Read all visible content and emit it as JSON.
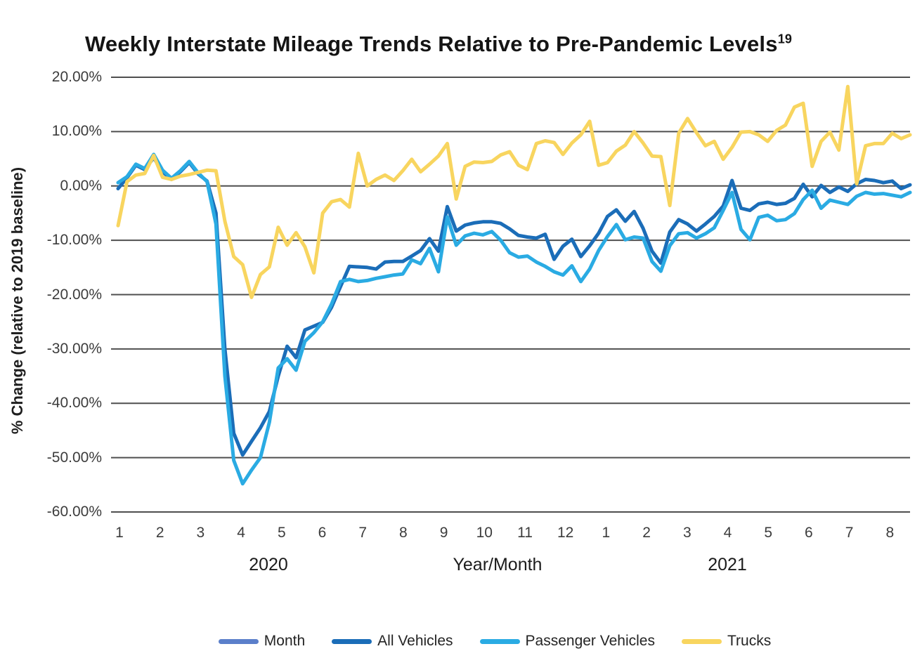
{
  "title": {
    "text": "Weekly Interstate Mileage Trends Relative to Pre-Pandemic Levels",
    "superscript": "19"
  },
  "y_axis": {
    "label": "% Change (relative to 2019 baseline)",
    "ticks": [
      {
        "label": "20.00%",
        "value": 20
      },
      {
        "label": "10.00%",
        "value": 10
      },
      {
        "label": "0.00%",
        "value": 0
      },
      {
        "label": "-10.00%",
        "value": -10
      },
      {
        "label": "-20.00%",
        "value": -20
      },
      {
        "label": "-30.00%",
        "value": -30
      },
      {
        "label": "-40.00%",
        "value": -40
      },
      {
        "label": "-50.00%",
        "value": -50
      },
      {
        "label": "-60.00%",
        "value": -60
      }
    ]
  },
  "x_axis": {
    "label": "Year/Month",
    "month_ticks": [
      "1",
      "2",
      "3",
      "4",
      "5",
      "6",
      "7",
      "8",
      "9",
      "10",
      "11",
      "12",
      "1",
      "2",
      "3",
      "4",
      "5",
      "6",
      "7",
      "8"
    ],
    "year_groups": [
      {
        "label": "2020",
        "months": 12
      },
      {
        "label": "2021",
        "months": 8
      }
    ]
  },
  "chart_data": {
    "type": "line",
    "title": "Weekly Interstate Mileage Trends Relative to Pre-Pandemic Levels",
    "xlabel": "Year/Month",
    "ylabel": "% Change (relative to 2019 baseline)",
    "ylim": [
      -60,
      20
    ],
    "y_tick_step": 10,
    "grid": "horizontal",
    "grid_color": "#4f4f4f",
    "legend_position": "bottom",
    "x_description": "Weekly observations, evenly spaced, January 2020 through late August 2021; month ticks 1-12 (2020) and 1-8 (2021)",
    "series": [
      {
        "name": "Month",
        "color": "#5b7fca",
        "values": null,
        "note": "legend entry only; no visible plotted line"
      },
      {
        "name": "All Vehicles",
        "color": "#1b6db8",
        "values": [
          -0.5,
          1.5,
          3.8,
          3.0,
          5.2,
          2.6,
          1.2,
          2.6,
          4.3,
          2.2,
          0.9,
          -5.0,
          -30.0,
          -45.5,
          -49.5,
          -47.0,
          -44.5,
          -41.5,
          -35.0,
          -29.5,
          -31.6,
          -26.5,
          -25.8,
          -25.1,
          -22.3,
          -18.5,
          -14.8,
          -14.9,
          -15.0,
          -15.3,
          -14.0,
          -13.9,
          -13.9,
          -12.9,
          -11.9,
          -9.7,
          -12.0,
          -3.8,
          -8.3,
          -7.2,
          -6.8,
          -6.6,
          -6.6,
          -6.9,
          -7.9,
          -9.1,
          -9.4,
          -9.6,
          -8.9,
          -13.5,
          -11.1,
          -9.8,
          -13.0,
          -11.0,
          -8.7,
          -5.6,
          -4.4,
          -6.5,
          -4.7,
          -7.8,
          -12.0,
          -14.2,
          -8.5,
          -6.2,
          -7.0,
          -8.3,
          -7.0,
          -5.6,
          -3.7,
          1.0,
          -4.1,
          -4.5,
          -3.3,
          -3.0,
          -3.4,
          -3.2,
          -2.3,
          0.3,
          -2.0,
          0.1,
          -1.2,
          -0.2,
          -1.0,
          0.4,
          1.2,
          1.0,
          0.6,
          0.9,
          -0.5,
          0.2
        ]
      },
      {
        "name": "Passenger Vehicles",
        "color": "#2aabe3",
        "values": [
          0.6,
          1.7,
          4.0,
          3.2,
          5.8,
          2.9,
          1.4,
          2.8,
          4.5,
          2.4,
          0.8,
          -7.0,
          -35.0,
          -50.5,
          -54.8,
          -52.3,
          -50.0,
          -43.5,
          -33.5,
          -31.8,
          -33.9,
          -28.6,
          -27.0,
          -25.0,
          -21.7,
          -17.6,
          -17.2,
          -17.6,
          -17.4,
          -17.0,
          -16.7,
          -16.4,
          -16.2,
          -13.6,
          -14.3,
          -11.5,
          -15.8,
          -5.7,
          -10.9,
          -9.2,
          -8.7,
          -9.0,
          -8.4,
          -10.0,
          -12.3,
          -13.1,
          -12.9,
          -14.0,
          -14.8,
          -15.8,
          -16.4,
          -14.7,
          -17.6,
          -15.3,
          -11.9,
          -9.3,
          -7.1,
          -9.9,
          -9.4,
          -9.6,
          -13.9,
          -15.7,
          -11.0,
          -8.8,
          -8.6,
          -9.6,
          -8.8,
          -7.7,
          -4.5,
          -1.2,
          -8.0,
          -9.9,
          -5.8,
          -5.4,
          -6.4,
          -6.2,
          -5.1,
          -2.5,
          -0.8,
          -4.1,
          -2.6,
          -3.0,
          -3.4,
          -1.9,
          -1.2,
          -1.5,
          -1.4,
          -1.7,
          -2.0,
          -1.2
        ]
      },
      {
        "name": "Trucks",
        "color": "#f8d55f",
        "values": [
          -7.3,
          0.8,
          2.0,
          2.3,
          5.6,
          1.6,
          1.2,
          1.8,
          2.1,
          2.5,
          2.9,
          2.8,
          -6.5,
          -13.0,
          -14.5,
          -20.5,
          -16.3,
          -14.9,
          -7.6,
          -10.9,
          -8.6,
          -11.2,
          -16.0,
          -5.0,
          -2.9,
          -2.5,
          -3.9,
          6.0,
          0.0,
          1.2,
          2.0,
          1.0,
          2.8,
          4.9,
          2.6,
          4.0,
          5.5,
          7.8,
          -2.4,
          3.6,
          4.4,
          4.3,
          4.5,
          5.7,
          6.3,
          3.8,
          3.0,
          7.8,
          8.3,
          8.0,
          5.8,
          7.9,
          9.4,
          11.9,
          3.8,
          4.3,
          6.4,
          7.5,
          10.0,
          7.9,
          5.5,
          5.4,
          -3.6,
          9.7,
          12.4,
          9.8,
          7.4,
          8.2,
          4.9,
          7.1,
          9.9,
          10.0,
          9.4,
          8.2,
          10.2,
          11.2,
          14.5,
          15.2,
          3.6,
          8.2,
          9.9,
          6.6,
          18.3,
          0.4,
          7.4,
          7.8,
          7.8,
          9.7,
          8.7,
          9.4
        ]
      }
    ]
  }
}
